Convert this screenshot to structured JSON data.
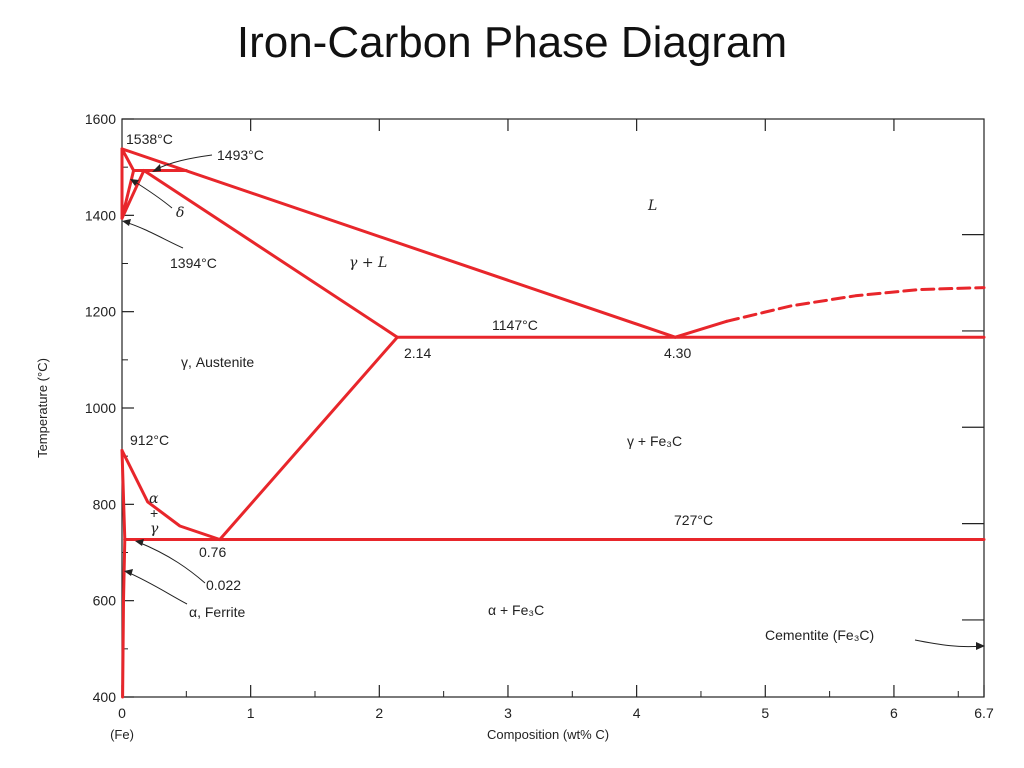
{
  "slide": {
    "title": "Iron-Carbon Phase Diagram"
  },
  "chart_data": {
    "type": "line",
    "title": "",
    "xlabel": "Composition (wt% C)",
    "ylabel": "Temperature (°C)",
    "xlim": [
      0,
      6.7
    ],
    "ylim": [
      400,
      1600
    ],
    "x_ticks": [
      "0",
      "1",
      "2",
      "3",
      "4",
      "5",
      "6",
      "6.7"
    ],
    "x_tick_values": [
      0,
      1,
      2,
      3,
      4,
      5,
      6,
      6.7
    ],
    "x_sub_label": "(Fe)",
    "y_ticks": [
      "400",
      "600",
      "800",
      "1000",
      "1200",
      "1400",
      "1600"
    ],
    "y_tick_values": [
      400,
      600,
      800,
      1000,
      1200,
      1400,
      1600
    ],
    "grid": false,
    "series": [
      {
        "values": [
          [
            0,
            1538
          ],
          [
            0.09,
            1493
          ],
          [
            0.5,
            1493
          ]
        ]
      },
      {
        "values": [
          [
            0,
            1538
          ],
          [
            4.3,
            1147
          ]
        ]
      },
      {
        "values": [
          [
            0,
            1538
          ],
          [
            0,
            1394
          ]
        ]
      },
      {
        "values": [
          [
            0,
            1394
          ],
          [
            0.09,
            1493
          ]
        ]
      },
      {
        "values": [
          [
            0,
            1394
          ],
          [
            0.17,
            1493
          ]
        ]
      },
      {
        "values": [
          [
            0.17,
            1493
          ],
          [
            2.14,
            1147
          ]
        ]
      },
      {
        "values": [
          [
            2.14,
            1147
          ],
          [
            6.7,
            1147
          ]
        ]
      },
      {
        "values": [
          [
            4.3,
            1147
          ],
          [
            4.7,
            1180
          ]
        ]
      },
      {
        "values": [
          [
            4.7,
            1180
          ],
          [
            5.2,
            1212
          ],
          [
            5.7,
            1233
          ],
          [
            6.2,
            1246
          ],
          [
            6.7,
            1250
          ]
        ],
        "dashed": true
      },
      {
        "values": [
          [
            2.14,
            1147
          ],
          [
            0.76,
            727
          ]
        ]
      },
      {
        "values": [
          [
            0,
            912
          ],
          [
            0.2,
            805
          ],
          [
            0.45,
            755
          ],
          [
            0.76,
            727
          ]
        ]
      },
      {
        "values": [
          [
            0.022,
            727
          ],
          [
            6.7,
            727
          ]
        ]
      },
      {
        "values": [
          [
            0,
            912
          ],
          [
            0.022,
            727
          ]
        ]
      },
      {
        "values": [
          [
            0.022,
            727
          ],
          [
            0.012,
            600
          ],
          [
            0.005,
            400
          ]
        ]
      }
    ],
    "annotations": [
      {
        "id": "t1538",
        "text": "1538°C"
      },
      {
        "id": "t1493",
        "text": "1493°C"
      },
      {
        "id": "delta",
        "text": "δ"
      },
      {
        "id": "t1394",
        "text": "1394°C"
      },
      {
        "id": "L",
        "text": "L"
      },
      {
        "id": "gammaL",
        "text": "γ + L"
      },
      {
        "id": "t1147",
        "text": "1147°C"
      },
      {
        "id": "c214",
        "text": "2.14"
      },
      {
        "id": "c430",
        "text": "4.30"
      },
      {
        "id": "austenite",
        "text": "γ, Austenite"
      },
      {
        "id": "t912",
        "text": "912°C"
      },
      {
        "id": "gammaFe3C",
        "text": "γ + Fe₃C"
      },
      {
        "id": "alpha",
        "text": "α"
      },
      {
        "id": "plus",
        "text": "+"
      },
      {
        "id": "gamma",
        "text": "γ"
      },
      {
        "id": "t727",
        "text": "727°C"
      },
      {
        "id": "c076",
        "text": "0.76"
      },
      {
        "id": "c0022",
        "text": "0.022"
      },
      {
        "id": "ferrite",
        "text": "α, Ferrite"
      },
      {
        "id": "alphaFe3C",
        "text": "α + Fe₃C"
      },
      {
        "id": "cementite",
        "text": "Cementite (Fe₃C)"
      }
    ]
  },
  "colors": {
    "phase_line": "#e8262b",
    "axis": "#222222",
    "text": "#222222"
  }
}
